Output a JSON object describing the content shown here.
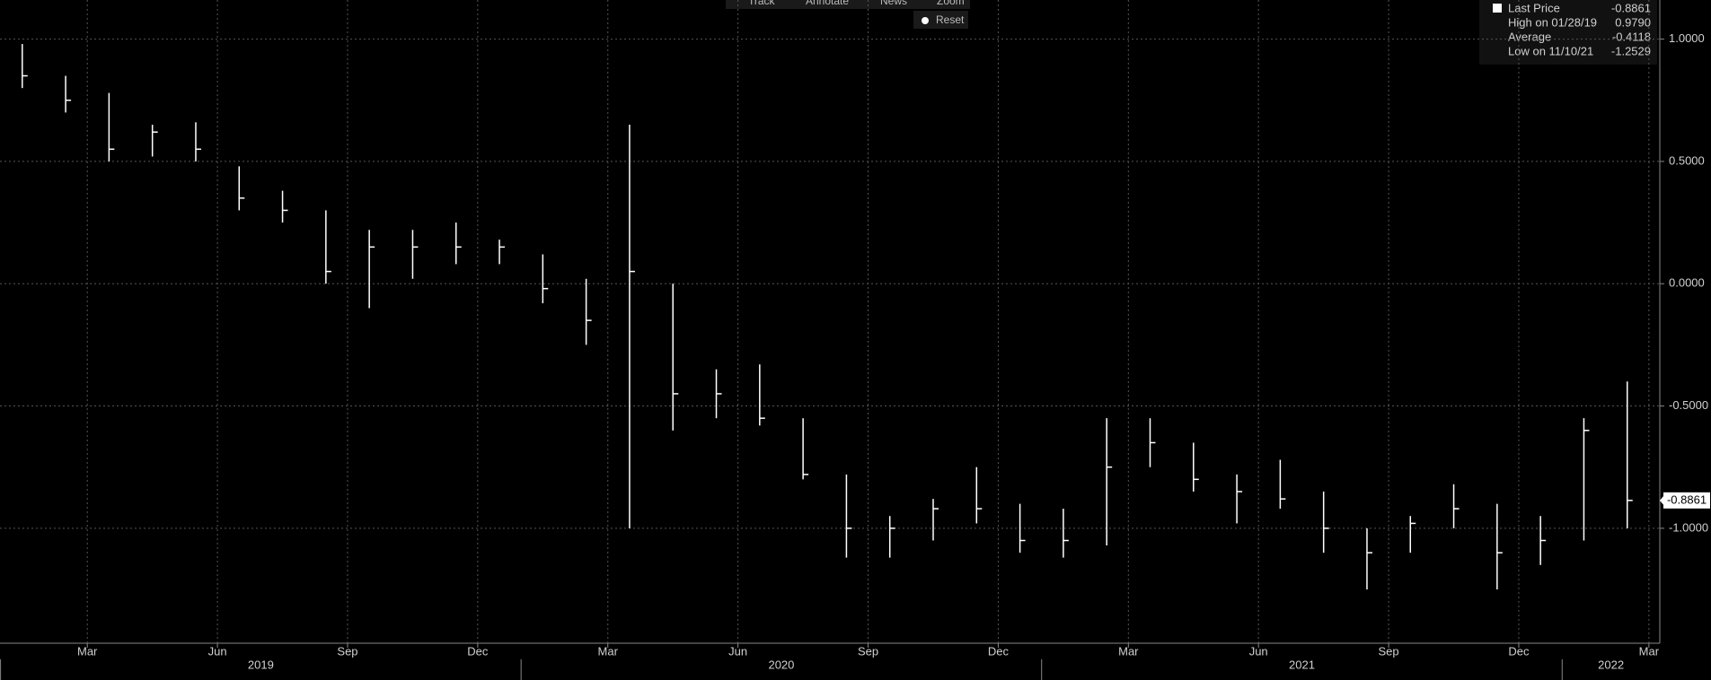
{
  "toolbar": [
    "Track",
    "Annotate",
    "News",
    "Zoom"
  ],
  "reset": "Reset",
  "legend_stats": [
    {
      "label": "Last Price",
      "value": "-0.8861"
    },
    {
      "label": "High on 01/28/19",
      "value": "0.9790"
    },
    {
      "label": "Average",
      "value": "-0.4118"
    },
    {
      "label": "Low on 11/10/21",
      "value": "-1.2529"
    }
  ],
  "chart_data": {
    "type": "bar-range",
    "color": "#ffffff",
    "grid": true,
    "x": [
      "2019-01",
      "2019-02",
      "2019-03",
      "2019-04",
      "2019-05",
      "2019-06",
      "2019-07",
      "2019-08",
      "2019-09",
      "2019-10",
      "2019-11",
      "2019-12",
      "2020-01",
      "2020-02",
      "2020-03",
      "2020-04",
      "2020-05",
      "2020-06",
      "2020-07",
      "2020-08",
      "2020-09",
      "2020-10",
      "2020-11",
      "2020-12",
      "2021-01",
      "2021-02",
      "2021-03",
      "2021-04",
      "2021-05",
      "2021-06",
      "2021-07",
      "2021-08",
      "2021-09",
      "2021-10",
      "2021-11",
      "2021-12",
      "2022-01",
      "2022-02"
    ],
    "high": [
      0.98,
      0.85,
      0.78,
      0.65,
      0.66,
      0.48,
      0.38,
      0.3,
      0.22,
      0.22,
      0.25,
      0.18,
      0.12,
      0.02,
      0.65,
      0.0,
      -0.35,
      -0.33,
      -0.55,
      -0.78,
      -0.95,
      -0.88,
      -0.75,
      -0.9,
      -0.92,
      -0.55,
      -0.55,
      -0.65,
      -0.78,
      -0.72,
      -0.85,
      -1.0,
      -0.95,
      -0.82,
      -0.9,
      -0.95,
      -0.55,
      -0.4
    ],
    "low": [
      0.8,
      0.7,
      0.5,
      0.52,
      0.5,
      0.3,
      0.25,
      0.0,
      -0.1,
      0.02,
      0.08,
      0.08,
      -0.08,
      -0.25,
      -1.0,
      -0.6,
      -0.55,
      -0.58,
      -0.8,
      -1.12,
      -1.12,
      -1.05,
      -0.98,
      -1.1,
      -1.12,
      -1.07,
      -0.75,
      -0.85,
      -0.98,
      -0.92,
      -1.1,
      -1.25,
      -1.1,
      -1.0,
      -1.25,
      -1.15,
      -1.05,
      -1.0
    ],
    "values": [
      0.85,
      0.75,
      0.55,
      0.62,
      0.55,
      0.35,
      0.3,
      0.05,
      0.15,
      0.15,
      0.15,
      0.15,
      -0.02,
      -0.15,
      0.05,
      -0.45,
      -0.45,
      -0.55,
      -0.78,
      -1.0,
      -1.0,
      -0.92,
      -0.92,
      -1.05,
      -1.05,
      -0.75,
      -0.65,
      -0.8,
      -0.85,
      -0.88,
      -1.0,
      -1.1,
      -0.98,
      -0.92,
      -1.1,
      -1.05,
      -0.6,
      -0.8861
    ],
    "ylim": [
      -1.47,
      1.16
    ],
    "yticks": [
      {
        "value": -1,
        "label": "-1.0000"
      },
      {
        "value": -0.5,
        "label": "-0.5000"
      },
      {
        "value": 0,
        "label": "0.0000"
      },
      {
        "value": 0.5,
        "label": "0.5000"
      },
      {
        "value": 1,
        "label": "1.0000"
      }
    ],
    "xticks": [
      {
        "value": "2019-03",
        "label": "Mar"
      },
      {
        "value": "2019-06",
        "label": "Jun"
      },
      {
        "value": "2019-09",
        "label": "Sep"
      },
      {
        "value": "2019-12",
        "label": "Dec"
      },
      {
        "value": "2020-03",
        "label": "Mar"
      },
      {
        "value": "2020-06",
        "label": "Jun"
      },
      {
        "value": "2020-09",
        "label": "Sep"
      },
      {
        "value": "2020-12",
        "label": "Dec"
      },
      {
        "value": "2021-03",
        "label": "Mar"
      },
      {
        "value": "2021-06",
        "label": "Jun"
      },
      {
        "value": "2021-09",
        "label": "Sep"
      },
      {
        "value": "2021-12",
        "label": "Dec"
      },
      {
        "value": "2022-03",
        "label": "Mar"
      }
    ],
    "years": [
      "2019",
      "2020",
      "2021",
      "2022"
    ]
  }
}
